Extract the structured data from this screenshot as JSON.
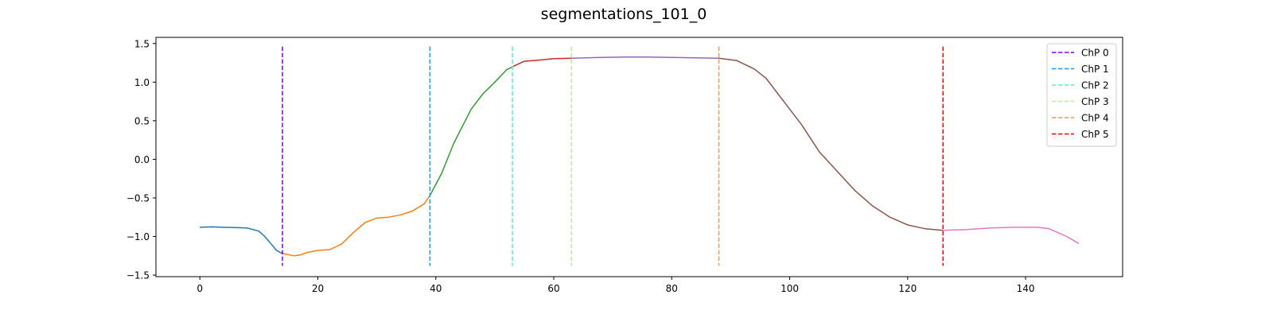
{
  "chart_data": {
    "type": "line",
    "title": "segmentations_101_0",
    "xlabel": "",
    "ylabel": "",
    "xlim": [
      -7.45,
      156.45
    ],
    "ylim": [
      -1.52,
      1.58
    ],
    "grid": false,
    "legend_position": "top-right",
    "x_ticks": [
      0,
      20,
      40,
      60,
      80,
      100,
      120,
      140
    ],
    "y_ticks": [
      -1.5,
      -1.0,
      -0.5,
      0.0,
      0.5,
      1.0,
      1.5
    ],
    "series": [
      {
        "color": "#1f77b4",
        "points": [
          [
            0,
            -0.88
          ],
          [
            2,
            -0.875
          ],
          [
            4,
            -0.88
          ],
          [
            6,
            -0.885
          ],
          [
            8,
            -0.89
          ],
          [
            10,
            -0.93
          ],
          [
            11,
            -1.0
          ],
          [
            12,
            -1.09
          ],
          [
            13,
            -1.18
          ],
          [
            14,
            -1.22
          ]
        ]
      },
      {
        "color": "#ff7f0e",
        "points": [
          [
            14,
            -1.22
          ],
          [
            16,
            -1.25
          ],
          [
            17,
            -1.24
          ],
          [
            18,
            -1.21
          ],
          [
            20,
            -1.18
          ],
          [
            22,
            -1.17
          ],
          [
            24,
            -1.1
          ],
          [
            26,
            -0.95
          ],
          [
            28,
            -0.82
          ],
          [
            30,
            -0.76
          ],
          [
            32,
            -0.75
          ],
          [
            34,
            -0.72
          ],
          [
            36,
            -0.67
          ],
          [
            38,
            -0.58
          ],
          [
            39,
            -0.47
          ]
        ]
      },
      {
        "color": "#2ca02c",
        "points": [
          [
            39,
            -0.47
          ],
          [
            41,
            -0.18
          ],
          [
            43,
            0.2
          ],
          [
            46,
            0.65
          ],
          [
            48,
            0.85
          ],
          [
            50,
            1.0
          ],
          [
            52,
            1.16
          ],
          [
            53,
            1.2
          ]
        ]
      },
      {
        "color": "#d62728",
        "points": [
          [
            53,
            1.2
          ],
          [
            55,
            1.27
          ],
          [
            58,
            1.29
          ],
          [
            60,
            1.305
          ],
          [
            63,
            1.31
          ]
        ]
      },
      {
        "color": "#9467bd",
        "points": [
          [
            63,
            1.31
          ],
          [
            68,
            1.32
          ],
          [
            72,
            1.325
          ],
          [
            76,
            1.325
          ],
          [
            80,
            1.32
          ],
          [
            84,
            1.315
          ],
          [
            88,
            1.31
          ]
        ]
      },
      {
        "color": "#8c564b",
        "points": [
          [
            88,
            1.31
          ],
          [
            91,
            1.28
          ],
          [
            94,
            1.17
          ],
          [
            96,
            1.05
          ],
          [
            99,
            0.75
          ],
          [
            102,
            0.45
          ],
          [
            105,
            0.1
          ],
          [
            108,
            -0.15
          ],
          [
            111,
            -0.4
          ],
          [
            114,
            -0.6
          ],
          [
            117,
            -0.75
          ],
          [
            120,
            -0.85
          ],
          [
            123,
            -0.9
          ],
          [
            126,
            -0.92
          ]
        ]
      },
      {
        "color": "#e377c2",
        "points": [
          [
            126,
            -0.92
          ],
          [
            130,
            -0.91
          ],
          [
            134,
            -0.89
          ],
          [
            138,
            -0.88
          ],
          [
            142,
            -0.88
          ],
          [
            144,
            -0.9
          ],
          [
            147,
            -1.0
          ],
          [
            149,
            -1.09
          ]
        ]
      }
    ],
    "changepoints": [
      {
        "name": "ChP 0",
        "x": 14,
        "color": "#7f00ff"
      },
      {
        "name": "ChP 1",
        "x": 39,
        "color": "#1996f3"
      },
      {
        "name": "ChP 2",
        "x": 53,
        "color": "#4df3ce"
      },
      {
        "name": "ChP 3",
        "x": 63,
        "color": "#b2f396"
      },
      {
        "name": "ChP 4",
        "x": 88,
        "color": "#ff964f"
      },
      {
        "name": "ChP 5",
        "x": 126,
        "color": "#ff0000"
      }
    ],
    "changepoint_span": [
      -1.38,
      1.46
    ]
  }
}
